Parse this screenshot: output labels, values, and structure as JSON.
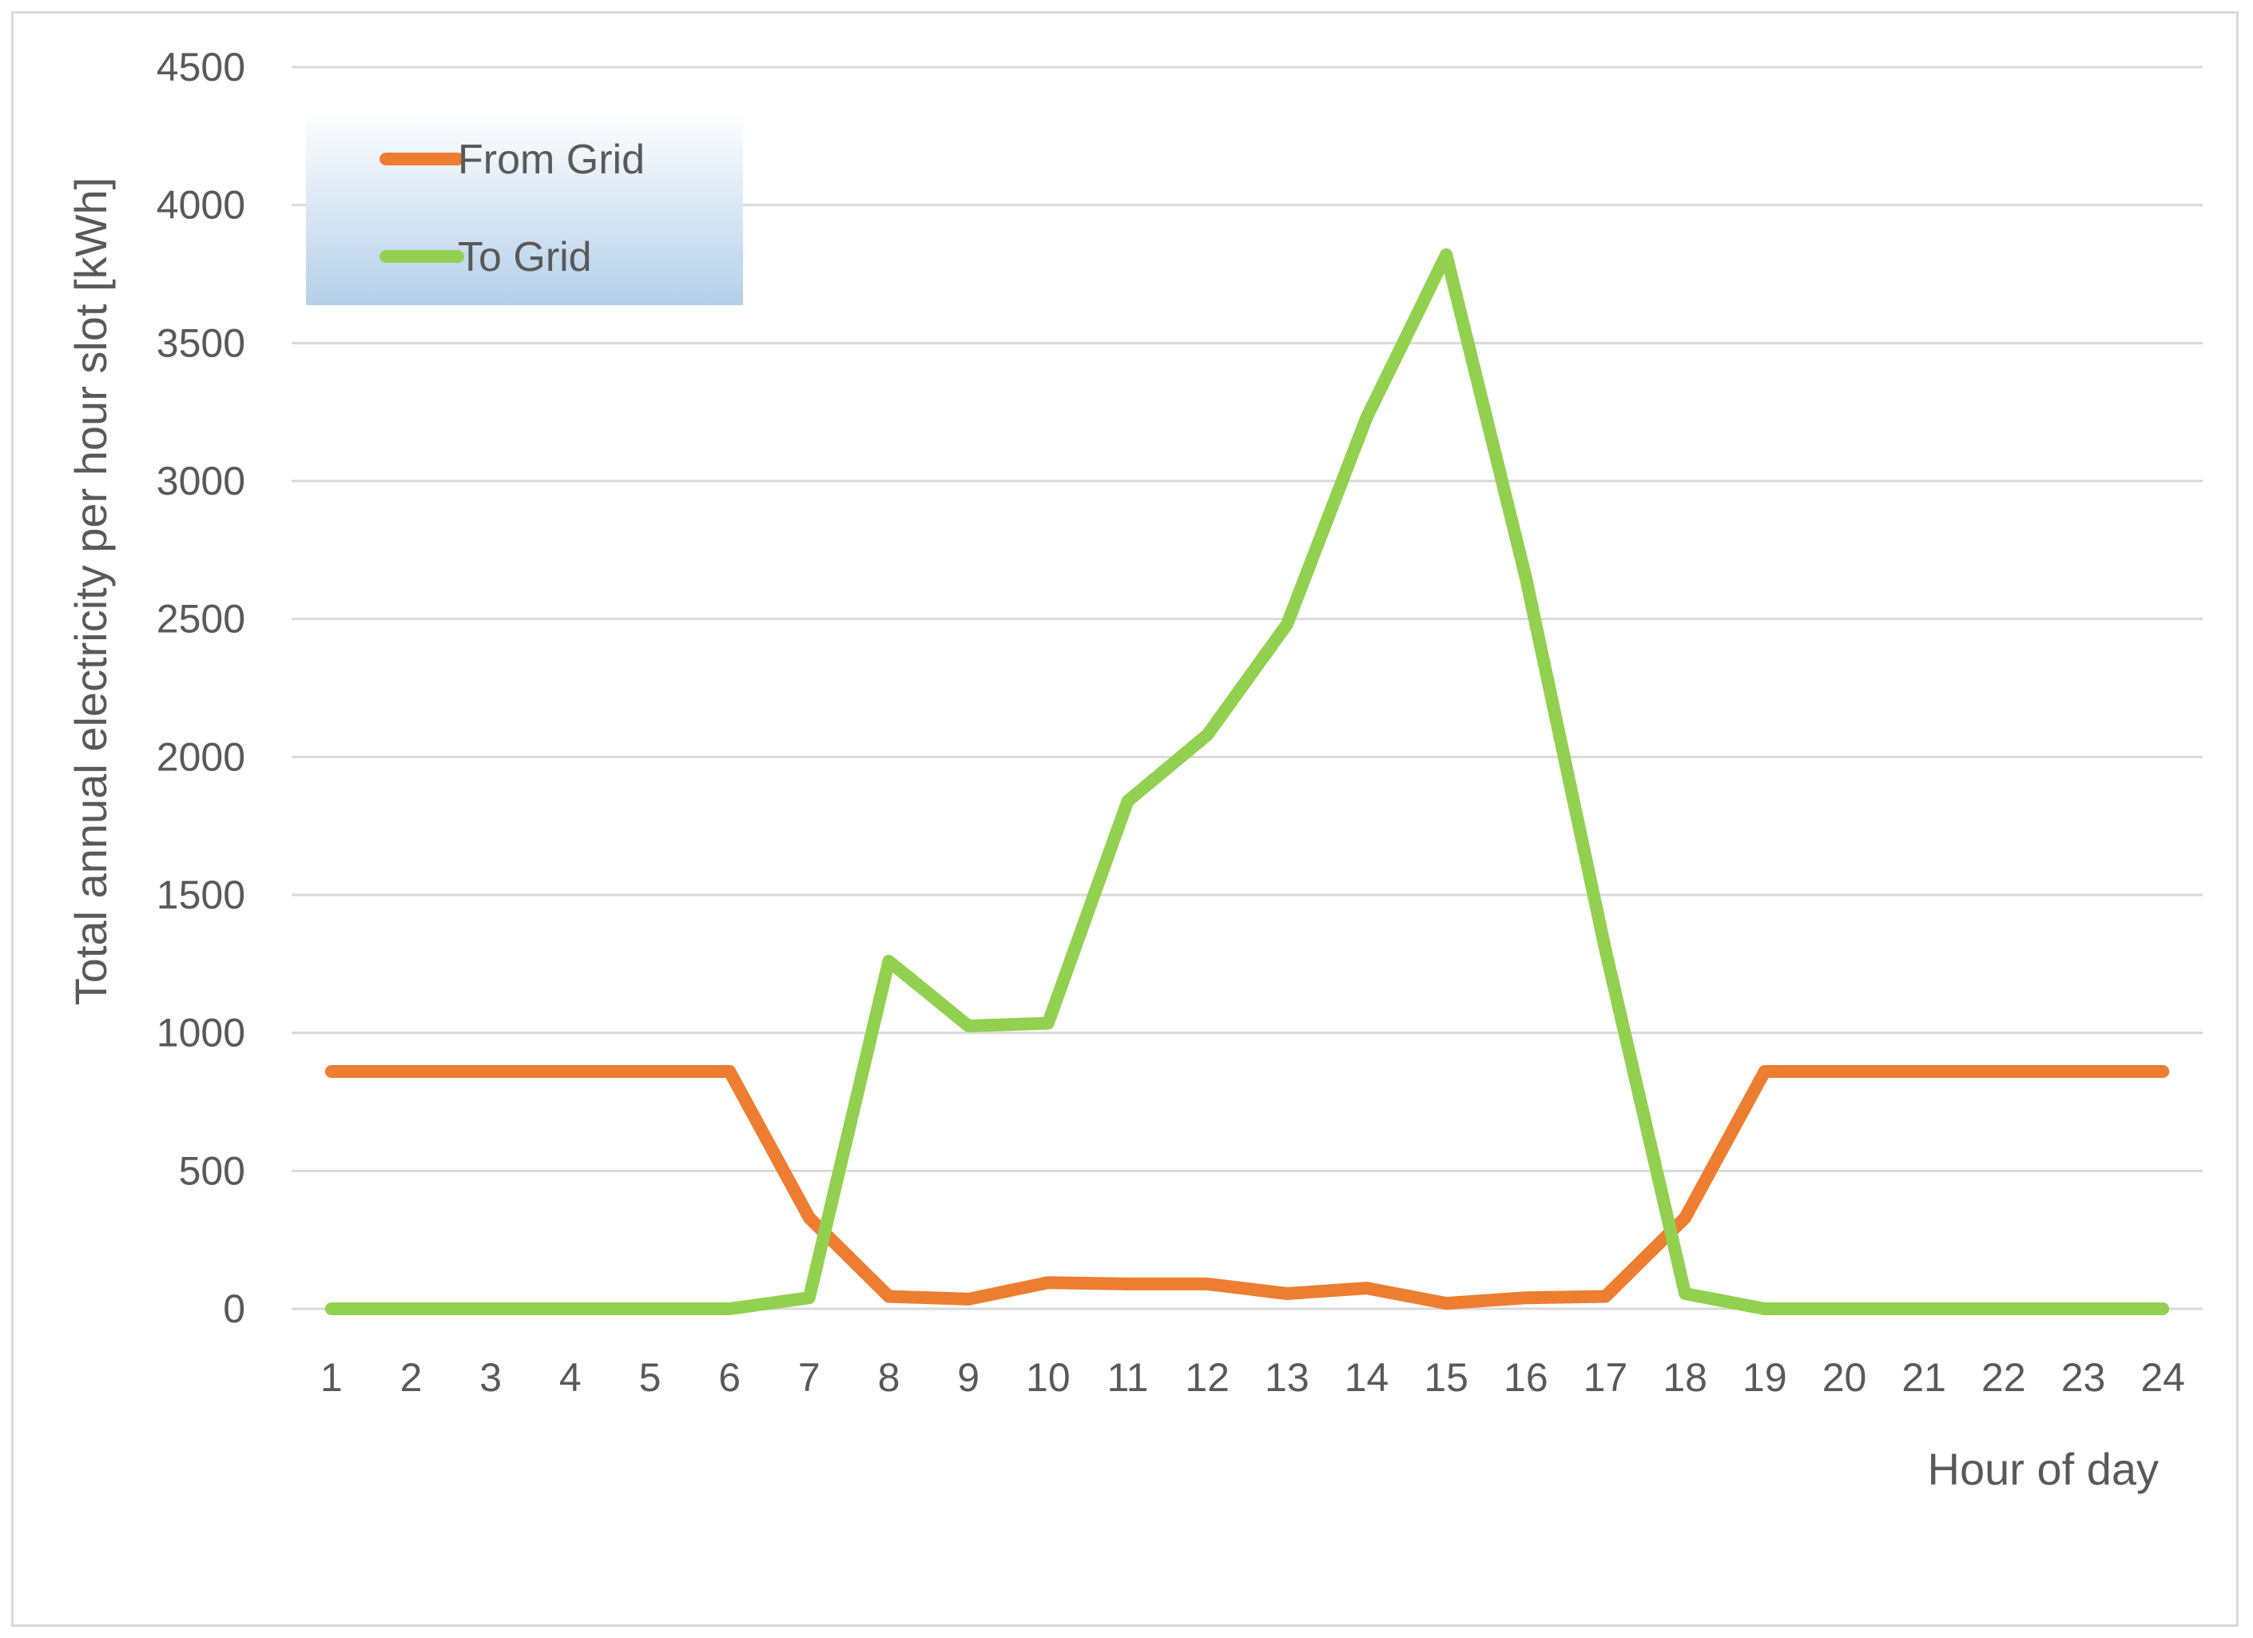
{
  "chart_data": {
    "type": "line",
    "title": "",
    "xlabel": "Hour of day",
    "ylabel": "Total annual electricity per hour slot [kWh]",
    "ylim": [
      0,
      4500
    ],
    "yticks": [
      "0",
      "500",
      "1000",
      "1500",
      "2000",
      "2500",
      "3000",
      "3500",
      "4000",
      "4500"
    ],
    "ytick_values": [
      0,
      500,
      1000,
      1500,
      2000,
      2500,
      3000,
      3500,
      4000,
      4500
    ],
    "categories": [
      "1",
      "2",
      "3",
      "4",
      "5",
      "6",
      "7",
      "8",
      "9",
      "10",
      "11",
      "12",
      "13",
      "14",
      "15",
      "16",
      "17",
      "18",
      "19",
      "20",
      "21",
      "22",
      "23",
      "24"
    ],
    "grid": true,
    "legend": "top-left",
    "series": [
      {
        "name": "From Grid",
        "color": "#ed7d31",
        "values": [
          860,
          860,
          860,
          860,
          860,
          860,
          330,
          45,
          35,
          95,
          90,
          90,
          55,
          75,
          20,
          40,
          45,
          330,
          860,
          860,
          860,
          860,
          860,
          860
        ]
      },
      {
        "name": "To Grid",
        "color": "#92d050",
        "values": [
          0,
          0,
          0,
          0,
          0,
          0,
          40,
          1260,
          1025,
          1035,
          1840,
          2080,
          2480,
          3230,
          3820,
          2650,
          1300,
          55,
          0,
          0,
          0,
          0,
          0,
          0
        ]
      }
    ],
    "colors": {
      "gridline": "#d9d9d9",
      "text": "#595959",
      "legend_top": "#ffffff",
      "legend_bottom": "#b4cfe9"
    }
  }
}
